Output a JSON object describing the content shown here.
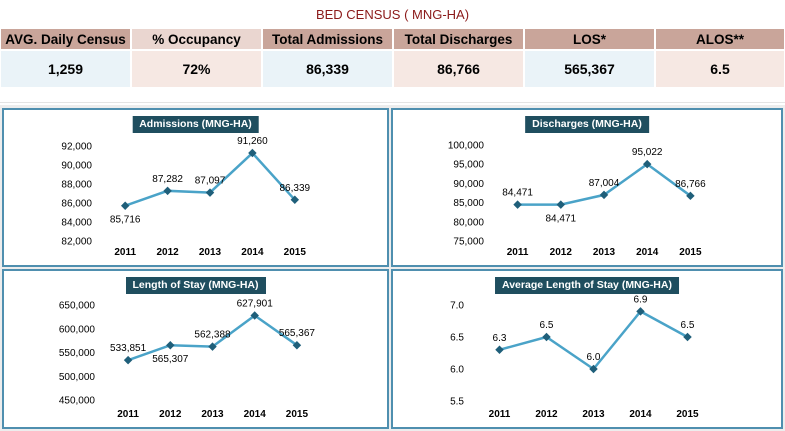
{
  "header": {
    "title": "BED CENSUS ( MNG-HA)"
  },
  "kpis": [
    {
      "label": "AVG. Daily Census",
      "value": "1,259"
    },
    {
      "label": "% Occupancy",
      "value": "72%"
    },
    {
      "label": "Total Admissions",
      "value": "86,339"
    },
    {
      "label": "Total Discharges",
      "value": "86,766"
    },
    {
      "label": "LOS*",
      "value": "565,367"
    },
    {
      "label": "ALOS**",
      "value": "6.5"
    }
  ],
  "colors": {
    "line": "#4aa3c8",
    "marker": "#1f5f7a",
    "panel_border": "#4f8faf",
    "title_bg": "#1f4e5f",
    "header_dark": "#c9a59a",
    "header_light": "#ead6d0"
  },
  "chart_data": [
    {
      "type": "line",
      "title": "Admissions (MNG-HA)",
      "categories": [
        "2011",
        "2012",
        "2013",
        "2014",
        "2015"
      ],
      "values": [
        85716,
        87282,
        87097,
        91260,
        86339
      ],
      "value_labels": [
        "85,716",
        "87,282",
        "87,097",
        "91,260",
        "86,339"
      ],
      "yticks": [
        "82,000",
        "84,000",
        "86,000",
        "88,000",
        "90,000",
        "92,000"
      ],
      "ylim": [
        82000,
        92000
      ],
      "grid": false
    },
    {
      "type": "line",
      "title": "Discharges (MNG-HA)",
      "categories": [
        "2011",
        "2012",
        "2013",
        "2014",
        "2015"
      ],
      "values": [
        84471,
        84471,
        87004,
        95022,
        86766
      ],
      "value_labels": [
        "84,471",
        "84,471",
        "87,004",
        "95,022",
        "86,766"
      ],
      "yticks": [
        "75,000",
        "80,000",
        "85,000",
        "90,000",
        "95,000",
        "100,000"
      ],
      "ylim": [
        75000,
        100000
      ],
      "grid": false
    },
    {
      "type": "line",
      "title": "Length of Stay (MNG-HA)",
      "categories": [
        "2011",
        "2012",
        "2013",
        "2014",
        "2015"
      ],
      "values": [
        533851,
        565307,
        562388,
        627901,
        565367
      ],
      "value_labels": [
        "533,851",
        "565,307",
        "562,388",
        "627,901",
        "565,367"
      ],
      "yticks": [
        "450,000",
        "500,000",
        "550,000",
        "600,000",
        "650,000"
      ],
      "ylim": [
        450000,
        650000
      ],
      "grid": false
    },
    {
      "type": "line",
      "title": "Average Length of Stay (MNG-HA)",
      "categories": [
        "2011",
        "2012",
        "2013",
        "2014",
        "2015"
      ],
      "values": [
        6.3,
        6.5,
        6.0,
        6.9,
        6.5
      ],
      "value_labels": [
        "6.3",
        "6.5",
        "6.0",
        "6.9",
        "6.5"
      ],
      "yticks": [
        "5.5",
        "6.0",
        "6.5",
        "7.0"
      ],
      "ylim": [
        5.5,
        7.0
      ],
      "grid": false
    }
  ]
}
